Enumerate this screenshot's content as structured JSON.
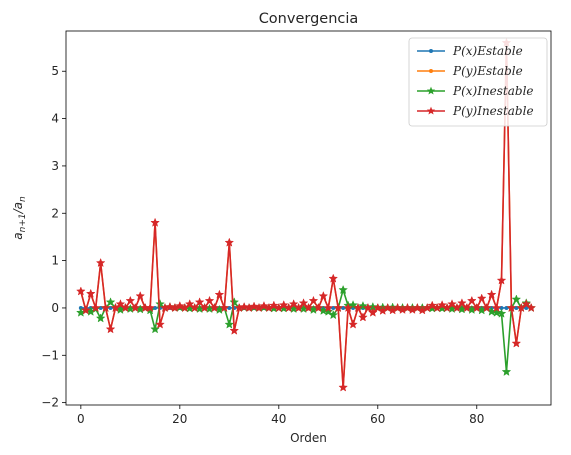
{
  "chart_data": {
    "type": "line",
    "title": "Convergencia",
    "xlabel": "Orden",
    "ylabel": "a_{n+1}/a_n",
    "xlim": [
      -3,
      95
    ],
    "ylim": [
      -2.05,
      5.85
    ],
    "xticks": [
      0,
      20,
      40,
      60,
      80
    ],
    "yticks": [
      -2,
      -1,
      0,
      1,
      2,
      3,
      4,
      5
    ],
    "legend_placement": "top-right",
    "grid": false,
    "series": [
      {
        "name": "P(x)Estable",
        "color": "#1f77b4",
        "marker": "dot",
        "x": [
          0,
          1,
          2,
          3,
          4,
          5,
          6,
          7,
          8,
          9,
          10,
          11,
          12,
          13,
          14,
          15,
          16,
          17,
          18,
          19,
          20,
          21,
          22,
          23,
          24,
          25,
          26,
          27,
          28,
          29,
          30,
          31,
          32,
          33,
          34,
          35,
          36,
          37,
          38,
          39,
          40,
          41,
          42,
          43,
          44,
          45,
          46,
          47,
          48,
          49,
          50,
          51,
          52,
          53,
          54,
          55,
          56,
          57,
          58,
          59,
          60,
          61,
          62,
          63,
          64,
          65,
          66,
          67,
          68,
          69,
          70,
          71,
          72,
          73,
          74,
          75,
          76,
          77,
          78,
          79,
          80,
          81,
          82,
          83,
          84,
          85,
          86,
          87,
          88,
          89,
          90,
          91
        ],
        "y": [
          0,
          0,
          0,
          0,
          0,
          0,
          0,
          0,
          0,
          0,
          0,
          0,
          0,
          0,
          0,
          0,
          0,
          0,
          0,
          0,
          0,
          0,
          0,
          0,
          0,
          0,
          0,
          0,
          0,
          0,
          0,
          0,
          0,
          0,
          0,
          0,
          0,
          0,
          0,
          0,
          0,
          0,
          0,
          0,
          0,
          0,
          0,
          0,
          0,
          0,
          0,
          0,
          0,
          0,
          0,
          0,
          0,
          0,
          0,
          0,
          0,
          0,
          0,
          0,
          0,
          0,
          0,
          0,
          0,
          0,
          0,
          0,
          0,
          0,
          0,
          0,
          0,
          0,
          0,
          0,
          0,
          0,
          0,
          0,
          0,
          0,
          0,
          0,
          0,
          0,
          0,
          0
        ]
      },
      {
        "name": "P(y)Estable",
        "color": "#ff7f0e",
        "marker": "dot",
        "x": [
          0,
          1,
          2,
          3,
          4,
          5,
          6,
          7,
          8,
          9,
          10,
          11,
          12,
          13,
          14,
          15,
          16,
          17,
          18,
          19,
          20,
          21,
          22,
          23,
          24,
          25,
          26,
          27,
          28,
          29,
          30,
          31,
          32,
          33,
          34,
          35,
          36,
          37,
          38,
          39,
          40,
          41,
          42,
          43,
          44,
          45,
          46,
          47,
          48,
          49,
          50,
          51,
          52,
          53,
          54,
          55,
          56,
          57,
          58,
          59,
          60,
          61,
          62,
          63,
          64,
          65,
          66,
          67,
          68,
          69,
          70,
          71,
          72,
          73,
          74,
          75,
          76,
          77,
          78,
          79,
          80,
          81,
          82,
          83,
          84,
          85,
          86,
          87,
          88,
          89,
          90,
          91
        ],
        "y": [
          0.35,
          -0.05,
          0.3,
          0,
          0.95,
          0,
          -0.45,
          0,
          0.08,
          0,
          0.15,
          0,
          0.25,
          0,
          0,
          1.8,
          -0.35,
          0,
          0.02,
          0,
          0.04,
          0,
          0.08,
          0,
          0.12,
          0,
          0.15,
          0,
          0.28,
          0,
          1.38,
          -0.48,
          0,
          0.02,
          0,
          0.03,
          0,
          0.04,
          0,
          0.05,
          0,
          0.06,
          0,
          0.08,
          0,
          0.1,
          0,
          0.15,
          0,
          0.25,
          0,
          0.62,
          0,
          -1.68,
          0,
          -0.35,
          0,
          -0.2,
          0,
          -0.1,
          0,
          -0.06,
          0,
          -0.05,
          0,
          -0.04,
          0,
          -0.04,
          0,
          -0.05,
          0,
          0.05,
          0,
          0.06,
          0,
          0.08,
          0,
          0.1,
          0,
          0.15,
          0,
          0.2,
          0,
          0.28,
          0,
          0.58,
          5.6,
          0,
          -0.75,
          0,
          0.08,
          0
        ]
      },
      {
        "name": "P(x)Inestable",
        "color": "#2ca02c",
        "marker": "star",
        "x": [
          0,
          1,
          2,
          3,
          4,
          5,
          6,
          7,
          8,
          9,
          10,
          11,
          12,
          13,
          14,
          15,
          16,
          17,
          18,
          19,
          20,
          21,
          22,
          23,
          24,
          25,
          26,
          27,
          28,
          29,
          30,
          31,
          32,
          33,
          34,
          35,
          36,
          37,
          38,
          39,
          40,
          41,
          42,
          43,
          44,
          45,
          46,
          47,
          48,
          49,
          50,
          51,
          52,
          53,
          54,
          55,
          56,
          57,
          58,
          59,
          60,
          61,
          62,
          63,
          64,
          65,
          66,
          67,
          68,
          69,
          70,
          71,
          72,
          73,
          74,
          75,
          76,
          77,
          78,
          79,
          80,
          81,
          82,
          83,
          84,
          85,
          86,
          87,
          88,
          89,
          90,
          91
        ],
        "y": [
          -0.1,
          -0.05,
          -0.08,
          -0.02,
          -0.22,
          0,
          0.12,
          0,
          -0.04,
          0,
          -0.02,
          0,
          -0.03,
          0,
          -0.05,
          -0.45,
          0.08,
          0,
          0.02,
          0,
          0.01,
          0,
          -0.01,
          0,
          -0.02,
          0,
          -0.02,
          0,
          -0.04,
          0,
          -0.35,
          0.12,
          0,
          0.01,
          0,
          0.01,
          0,
          0.01,
          0,
          -0.01,
          0,
          -0.01,
          0,
          -0.02,
          0,
          -0.02,
          0,
          -0.04,
          0,
          -0.06,
          -0.08,
          -0.15,
          0,
          0.38,
          0.05,
          0.06,
          0,
          0.04,
          0,
          0.02,
          0,
          0.01,
          0,
          0.01,
          0,
          0,
          0,
          0,
          0,
          0,
          0,
          -0.01,
          0,
          -0.01,
          0,
          -0.02,
          0,
          -0.03,
          0,
          -0.04,
          0,
          -0.05,
          0,
          -0.08,
          -0.1,
          -0.12,
          -1.35,
          0,
          0.18,
          0,
          0.1,
          0
        ]
      },
      {
        "name": "P(y)Inestable",
        "color": "#d62728",
        "marker": "star",
        "x": [
          0,
          1,
          2,
          3,
          4,
          5,
          6,
          7,
          8,
          9,
          10,
          11,
          12,
          13,
          14,
          15,
          16,
          17,
          18,
          19,
          20,
          21,
          22,
          23,
          24,
          25,
          26,
          27,
          28,
          29,
          30,
          31,
          32,
          33,
          34,
          35,
          36,
          37,
          38,
          39,
          40,
          41,
          42,
          43,
          44,
          45,
          46,
          47,
          48,
          49,
          50,
          51,
          52,
          53,
          54,
          55,
          56,
          57,
          58,
          59,
          60,
          61,
          62,
          63,
          64,
          65,
          66,
          67,
          68,
          69,
          70,
          71,
          72,
          73,
          74,
          75,
          76,
          77,
          78,
          79,
          80,
          81,
          82,
          83,
          84,
          85,
          86,
          87,
          88,
          89,
          90,
          91
        ],
        "y": [
          0.35,
          -0.05,
          0.3,
          0,
          0.95,
          0,
          -0.45,
          0,
          0.08,
          0,
          0.15,
          0,
          0.25,
          0,
          0,
          1.8,
          -0.35,
          0,
          0.02,
          0,
          0.04,
          0,
          0.08,
          0,
          0.12,
          0,
          0.15,
          0,
          0.28,
          0,
          1.38,
          -0.48,
          0,
          0.02,
          0,
          0.03,
          0,
          0.04,
          0,
          0.05,
          0,
          0.06,
          0,
          0.08,
          0,
          0.1,
          0,
          0.15,
          0,
          0.25,
          0,
          0.62,
          0,
          -1.68,
          0,
          -0.35,
          0,
          -0.2,
          0,
          -0.1,
          0,
          -0.06,
          0,
          -0.05,
          0,
          -0.04,
          0,
          -0.04,
          0,
          -0.05,
          0,
          0.05,
          0,
          0.06,
          0,
          0.08,
          0,
          0.1,
          0,
          0.15,
          0,
          0.2,
          0,
          0.28,
          0,
          0.58,
          5.6,
          0,
          -0.75,
          0,
          0.08,
          0
        ]
      }
    ]
  }
}
